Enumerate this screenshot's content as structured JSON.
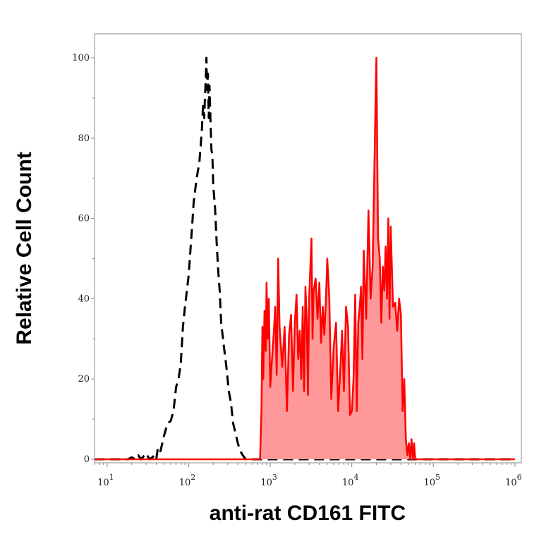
{
  "chart_data": {
    "type": "line",
    "title": "",
    "xlabel": "anti-rat CD161 FITC",
    "ylabel": "Relative Cell Count",
    "x_scale": "log",
    "xlim": [
      7,
      1200000
    ],
    "ylim": [
      -1,
      100
    ],
    "grid": false,
    "y_ticks": [
      0,
      20,
      40,
      60,
      80,
      100
    ],
    "y_tick_labels": [
      "0",
      "20",
      "40",
      "60",
      "80",
      "100"
    ],
    "x_ticks": [
      10,
      100,
      1000,
      10000,
      100000,
      1000000
    ],
    "x_tick_labels": [
      {
        "base": "10",
        "exp": "1"
      },
      {
        "base": "10",
        "exp": "2"
      },
      {
        "base": "10",
        "exp": "3"
      },
      {
        "base": "10",
        "exp": "4"
      },
      {
        "base": "10",
        "exp": "5"
      },
      {
        "base": "10",
        "exp": "6"
      }
    ],
    "series": [
      {
        "style": "dashed",
        "color": "#000000",
        "fill": "none",
        "x": [
          7,
          18,
          20,
          22,
          24,
          26,
          30,
          33,
          36,
          38,
          40,
          42,
          45,
          50,
          55,
          60,
          65,
          70,
          75,
          80,
          85,
          90,
          95,
          100,
          105,
          110,
          115,
          120,
          125,
          130,
          135,
          140,
          145,
          150,
          155,
          158,
          162,
          165,
          168,
          172,
          176,
          180,
          185,
          190,
          195,
          200,
          210,
          220,
          230,
          240,
          250,
          270,
          290,
          310,
          330,
          350,
          380,
          400,
          430,
          460,
          500,
          550,
          600,
          700,
          800,
          1000,
          2000,
          5000,
          10000,
          50000,
          1000000
        ],
        "y": [
          0,
          0,
          0.5,
          0,
          1,
          0,
          1.5,
          0,
          0.5,
          1,
          0,
          3,
          2,
          6,
          9,
          9.5,
          12,
          18,
          20,
          24,
          33,
          38,
          42,
          46,
          52,
          58,
          64,
          67,
          70,
          72,
          74,
          78,
          82,
          88,
          85,
          90,
          95,
          100,
          92,
          96,
          85,
          93,
          84,
          77,
          76,
          68,
          63,
          54,
          47,
          42,
          34,
          28,
          23,
          17,
          14,
          9,
          6,
          4,
          2,
          1,
          0,
          0,
          0,
          0,
          0,
          0,
          0,
          0,
          0,
          0,
          0
        ]
      },
      {
        "style": "solid",
        "color": "#ff0000",
        "fill": "#ff9999",
        "x": [
          7,
          750,
          780,
          800,
          820,
          850,
          880,
          900,
          930,
          960,
          1000,
          1050,
          1100,
          1150,
          1200,
          1250,
          1300,
          1400,
          1500,
          1600,
          1700,
          1800,
          1900,
          2000,
          2100,
          2200,
          2300,
          2400,
          2500,
          2600,
          2700,
          2800,
          2900,
          3000,
          3100,
          3200,
          3300,
          3400,
          3600,
          3800,
          4000,
          4200,
          4400,
          4600,
          4800,
          5000,
          5300,
          5600,
          6000,
          6400,
          6800,
          7200,
          7600,
          8000,
          8500,
          9000,
          9500,
          10000,
          10500,
          11000,
          11500,
          12000,
          12500,
          13000,
          13500,
          14000,
          15000,
          16000,
          17000,
          18000,
          19000,
          20000,
          21000,
          22000,
          23000,
          24000,
          25000,
          26000,
          27000,
          28000,
          29000,
          30000,
          32000,
          34000,
          36000,
          38000,
          40000,
          42000,
          44000,
          46000,
          48000,
          50000,
          52000,
          54000,
          56000,
          58000,
          60000,
          64000,
          70000,
          100000,
          1000000
        ],
        "y": [
          0,
          0,
          12,
          33,
          20,
          37,
          27,
          44,
          30,
          40,
          18,
          25,
          31,
          38,
          21,
          50,
          33,
          23,
          33,
          12,
          31,
          36,
          17,
          34,
          41,
          25,
          32,
          20,
          38,
          17,
          43,
          35,
          16,
          40,
          48,
          55,
          30,
          42,
          45,
          35,
          44,
          29,
          38,
          31,
          39,
          50,
          40,
          15,
          28,
          34,
          12,
          22,
          32,
          17,
          38,
          33,
          11,
          12,
          20,
          41,
          12,
          34,
          38,
          43,
          25,
          52,
          35,
          62,
          40,
          48,
          75,
          100,
          55,
          50,
          34,
          48,
          42,
          53,
          40,
          60,
          35,
          58,
          38,
          39,
          32,
          40,
          36,
          12,
          20,
          5,
          1,
          4,
          0,
          5,
          0,
          4,
          0,
          0,
          0,
          0,
          0
        ]
      }
    ]
  }
}
